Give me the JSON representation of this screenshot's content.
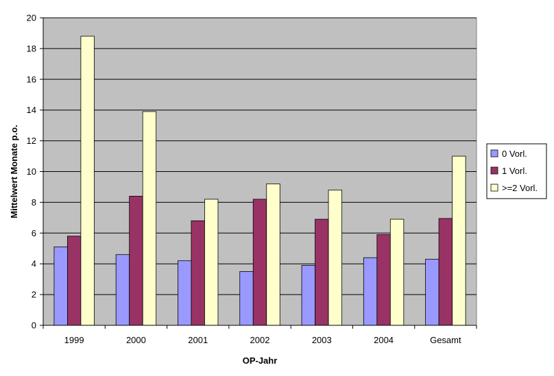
{
  "chart_data": {
    "type": "bar",
    "title": "",
    "xlabel": "OP-Jahr",
    "ylabel": "Mittelwert Monate p.o.",
    "categories": [
      "1999",
      "2000",
      "2001",
      "2002",
      "2003",
      "2004",
      "Gesamt"
    ],
    "ylim": [
      0,
      20
    ],
    "yticks": [
      0,
      2,
      4,
      6,
      8,
      10,
      12,
      14,
      16,
      18,
      20
    ],
    "grid": true,
    "legend_position": "right",
    "series": [
      {
        "name": "0 Vorl.",
        "color": "#9999ff",
        "values": [
          5.1,
          4.6,
          4.2,
          3.5,
          3.9,
          4.4,
          4.3
        ]
      },
      {
        "name": "1 Vorl.",
        "color": "#993366",
        "values": [
          5.8,
          8.4,
          6.8,
          8.2,
          6.9,
          5.9,
          6.95
        ]
      },
      {
        "name": ">=2 Vorl.",
        "color": "#ffffcc",
        "values": [
          18.8,
          13.9,
          8.2,
          9.2,
          8.8,
          6.9,
          11.0
        ]
      }
    ],
    "plot_background": "#c0c0c0"
  }
}
